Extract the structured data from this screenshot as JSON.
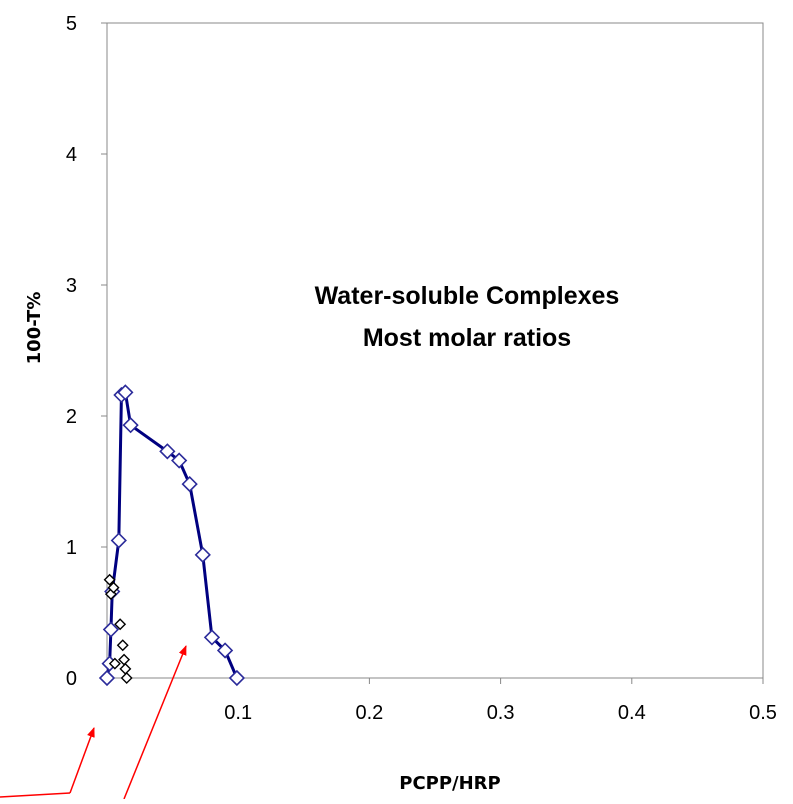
{
  "chart_data": {
    "type": "scatter",
    "title": "",
    "xlabel": "PCPP/HRP",
    "ylabel": "100-T%",
    "xlim": [
      0,
      0.5
    ],
    "ylim": [
      0,
      5
    ],
    "x_ticks": [
      "0.1",
      "0.2",
      "0.3",
      "0.4",
      "0.5"
    ],
    "y_ticks": [
      "0",
      "1",
      "2",
      "3",
      "4",
      "5"
    ],
    "grid": false,
    "annotation_lines": [
      "Water-soluble Complexes",
      "Most molar ratios"
    ],
    "series": [
      {
        "color": "#000080",
        "marker_color": "#2B2B9A",
        "line": true,
        "x": [
          0.0,
          0.002,
          0.003,
          0.004,
          0.009,
          0.011,
          0.014,
          0.018,
          0.046,
          0.055,
          0.063,
          0.073,
          0.08,
          0.09,
          0.099
        ],
        "y": [
          0.0,
          0.11,
          0.37,
          0.66,
          1.05,
          2.16,
          2.18,
          1.93,
          1.73,
          1.66,
          1.48,
          0.94,
          0.31,
          0.21,
          0.0
        ]
      },
      {
        "color": "#000000",
        "marker_color": "#000000",
        "line": false,
        "x": [
          0.002,
          0.003,
          0.005,
          0.006,
          0.01,
          0.012,
          0.013,
          0.014,
          0.015
        ],
        "y": [
          0.75,
          0.64,
          0.69,
          0.11,
          0.41,
          0.25,
          0.14,
          0.07,
          0.0
        ]
      }
    ]
  }
}
